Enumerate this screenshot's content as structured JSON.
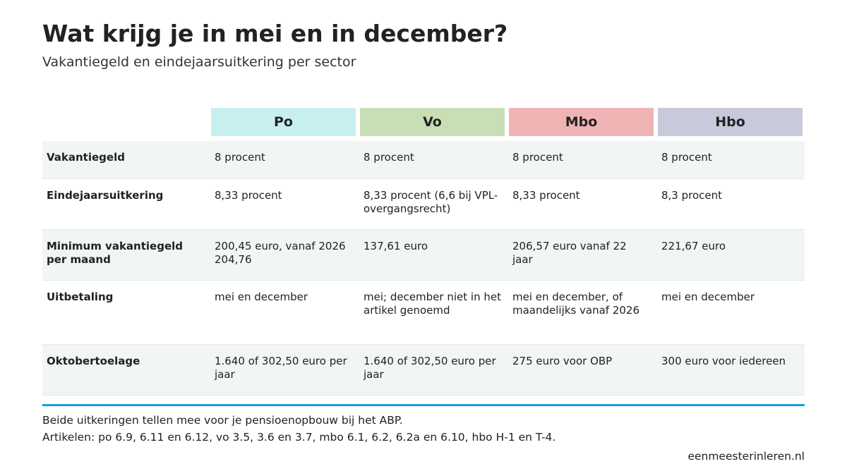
{
  "header": {
    "title": "Wat krijg je in mei en in december?",
    "subtitle": "Vakantiegeld en eindejaarsuitkering per sector"
  },
  "table": {
    "columns": [
      "Po",
      "Vo",
      "Mbo",
      "Hbo"
    ],
    "rows": [
      {
        "label": "Vakantiegeld",
        "cells": [
          "8 procent",
          "8 procent",
          "8 procent",
          "8 procent"
        ]
      },
      {
        "label": "Eindejaarsuitkering",
        "cells": [
          "8,33 procent",
          "8,33 procent (6,6 bij VPL-overgangsrecht)",
          "8,33 procent",
          "8,3 procent"
        ]
      },
      {
        "label": "Minimum vakantiegeld per maand",
        "cells": [
          "200,45 euro, vanaf 2026 204,76",
          "137,61 euro",
          "206,57 euro vanaf 22 jaar",
          "221,67 euro"
        ]
      },
      {
        "label": "Uitbetaling",
        "cells": [
          "mei en december",
          "mei; december niet in het artikel genoemd",
          "mei en december, of maandelijks vanaf 2026",
          "mei en december"
        ]
      },
      {
        "label": "Oktobertoelage",
        "cells": [
          "1.640 of 302,50 euro per jaar",
          "1.640 of 302,50 euro per jaar",
          "275 euro voor OBP",
          "300 euro voor iedereen"
        ]
      }
    ]
  },
  "footer": {
    "notes": [
      "Beide uitkeringen tellen mee voor je pensioenopbouw bij het ABP.",
      "Artikelen: po 6.9, 6.11 en 6.12, vo 3.5, 3.6 en 3.7, mbo 6.1, 6.2, 6.2a en 6.10, hbo H-1 en T-4."
    ],
    "source": "eenmeesterinleren.nl"
  }
}
